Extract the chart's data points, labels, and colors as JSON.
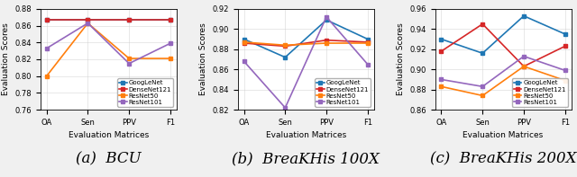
{
  "categories": [
    "OA",
    "Sen",
    "PPV",
    "F1"
  ],
  "charts": [
    {
      "title": "(a)  BCU",
      "xlabel": "Evaluation Matrices",
      "ylabel": "Evaluation Scores",
      "ylim": [
        0.76,
        0.88
      ],
      "yticks": [
        0.76,
        0.78,
        0.8,
        0.82,
        0.84,
        0.86,
        0.88
      ],
      "series": [
        {
          "label": "GoogLeNet",
          "color": "#1f77b4",
          "values": [
            0.867,
            0.867,
            0.867,
            0.867
          ]
        },
        {
          "label": "DenseNet121",
          "color": "#d62728",
          "values": [
            0.867,
            0.867,
            0.867,
            0.867
          ]
        },
        {
          "label": "ResNet50",
          "color": "#ff7f0e",
          "values": [
            0.8,
            0.863,
            0.821,
            0.821
          ]
        },
        {
          "label": "ResNet101",
          "color": "#9467bd",
          "values": [
            0.833,
            0.863,
            0.815,
            0.839
          ]
        }
      ]
    },
    {
      "title": "(b)  BreaKHis 100X",
      "xlabel": "Evaluation Matrices",
      "ylabel": "Evaluation Scores",
      "ylim": [
        0.82,
        0.92
      ],
      "yticks": [
        0.82,
        0.84,
        0.86,
        0.88,
        0.9,
        0.92
      ],
      "series": [
        {
          "label": "GoogLeNet",
          "color": "#1f77b4",
          "values": [
            0.89,
            0.872,
            0.909,
            0.89
          ]
        },
        {
          "label": "DenseNet121",
          "color": "#d62728",
          "values": [
            0.886,
            0.883,
            0.889,
            0.887
          ]
        },
        {
          "label": "ResNet50",
          "color": "#ff7f0e",
          "values": [
            0.887,
            0.884,
            0.886,
            0.886
          ]
        },
        {
          "label": "ResNet101",
          "color": "#9467bd",
          "values": [
            0.868,
            0.822,
            0.912,
            0.865
          ]
        }
      ]
    },
    {
      "title": "(c)  BreaKHis 200X",
      "xlabel": "Evaluation Matrices",
      "ylabel": "Evaluation Scores",
      "ylim": [
        0.86,
        0.96
      ],
      "yticks": [
        0.86,
        0.88,
        0.9,
        0.92,
        0.94,
        0.96
      ],
      "series": [
        {
          "label": "GoogLeNet",
          "color": "#1f77b4",
          "values": [
            0.93,
            0.916,
            0.953,
            0.935
          ]
        },
        {
          "label": "DenseNet121",
          "color": "#d62728",
          "values": [
            0.918,
            0.945,
            0.903,
            0.923
          ]
        },
        {
          "label": "ResNet50",
          "color": "#ff7f0e",
          "values": [
            0.883,
            0.874,
            0.903,
            0.889
          ]
        },
        {
          "label": "ResNet101",
          "color": "#9467bd",
          "values": [
            0.89,
            0.883,
            0.913,
            0.899
          ]
        }
      ]
    }
  ],
  "legend_loc": "lower right",
  "marker": "s",
  "linewidth": 1.2,
  "markersize": 3.5,
  "label_fontsize": 6.5,
  "tick_fontsize": 6,
  "legend_fontsize": 5.0,
  "caption_fontsize": 12,
  "background_color": "#f0f0f0"
}
